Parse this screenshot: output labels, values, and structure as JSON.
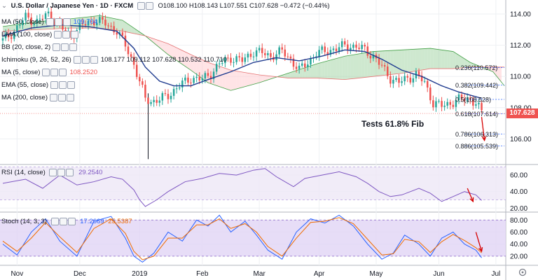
{
  "header": {
    "symbol": "U.S. Dollar / Japanese Yen · 1D · FXCM",
    "ohlc": "O108.100  H108.143  L107.551  C107.628  −0.472 (−0.44%)"
  },
  "legend_rows": [
    {
      "label": "MA (50, close)",
      "value": "109.704",
      "color": "#2962ff"
    },
    {
      "label": "EMA (100, close)",
      "value": "",
      "color": "#ff9800"
    },
    {
      "label": "BB (20, close, 2)",
      "value": "",
      "color": "#787b86"
    },
    {
      "label": "Ichimoku (9, 26, 52, 26)",
      "value": "108.177  109.112  107.628  110.532  110.710",
      "color": "#131722"
    },
    {
      "label": "MA (5, close)",
      "value": "108.2520",
      "color": "#ef5350"
    },
    {
      "label": "EMA (55, close)",
      "value": "",
      "color": "#131722"
    },
    {
      "label": "MA (200, close)",
      "value": "",
      "color": "#131722"
    }
  ],
  "rsi_legend": {
    "label": "RSI (14, close)",
    "value": "29.2540"
  },
  "stoch_legend": {
    "label": "Stoch (14, 3, 3)",
    "k": "17.2669",
    "d": "25.5387"
  },
  "annotation": "Tests 61.8% Fib",
  "price_tag": "107.628",
  "colors": {
    "up": "#26a69a",
    "down": "#ef5350",
    "ma": "#1f3b8f",
    "cloud_up": "#a5d6a7",
    "cloud_down": "#ffcdd2",
    "fib": "#2962ff",
    "rsi": "#7e57c2",
    "stoch_k": "#2962ff",
    "stoch_d": "#ef6c00",
    "arrow": "#d50000"
  },
  "chart_data": [
    {
      "type": "candlestick",
      "title": "U.S. Dollar / Japanese Yen, 1D, FXCM",
      "ylim": [
        104.4,
        114.9
      ],
      "y_ticks": [
        106.0,
        108.0,
        110.0,
        112.0,
        114.0
      ],
      "x_ticks": [
        {
          "label": "Nov",
          "i": 5
        },
        {
          "label": "Dec",
          "i": 27
        },
        {
          "label": "2019",
          "i": 48
        },
        {
          "label": "Feb",
          "i": 70
        },
        {
          "label": "Mar",
          "i": 90
        },
        {
          "label": "Apr",
          "i": 111
        },
        {
          "label": "May",
          "i": 131
        },
        {
          "label": "Jun",
          "i": 153
        },
        {
          "label": "Jul",
          "i": 173
        }
      ],
      "bars_count": 176,
      "close_path": [
        [
          0,
          112.3
        ],
        [
          4,
          112.9
        ],
        [
          8,
          113.8
        ],
        [
          12,
          113.5
        ],
        [
          16,
          114.0
        ],
        [
          20,
          113.2
        ],
        [
          24,
          112.6
        ],
        [
          28,
          113.3
        ],
        [
          32,
          113.6
        ],
        [
          36,
          113.4
        ],
        [
          40,
          112.9
        ],
        [
          43,
          112.0
        ],
        [
          46,
          110.8
        ],
        [
          48,
          109.6
        ],
        [
          50,
          108.6
        ],
        [
          52,
          108.4
        ],
        [
          55,
          108.5
        ],
        [
          58,
          108.8
        ],
        [
          62,
          109.4
        ],
        [
          66,
          109.9
        ],
        [
          70,
          109.8
        ],
        [
          73,
          110.2
        ],
        [
          76,
          110.8
        ],
        [
          80,
          111.2
        ],
        [
          84,
          111.0
        ],
        [
          88,
          111.6
        ],
        [
          91,
          111.5
        ],
        [
          94,
          111.3
        ],
        [
          98,
          111.6
        ],
        [
          101,
          111.1
        ],
        [
          104,
          110.4
        ],
        [
          107,
          110.9
        ],
        [
          110,
          111.5
        ],
        [
          113,
          111.6
        ],
        [
          117,
          111.8
        ],
        [
          121,
          112.0
        ],
        [
          124,
          111.9
        ],
        [
          127,
          111.7
        ],
        [
          130,
          111.3
        ],
        [
          133,
          110.6
        ],
        [
          136,
          109.9
        ],
        [
          139,
          109.6
        ],
        [
          142,
          109.9
        ],
        [
          145,
          110.1
        ],
        [
          148,
          109.6
        ],
        [
          151,
          108.3
        ],
        [
          154,
          108.1
        ],
        [
          157,
          108.3
        ],
        [
          160,
          108.5
        ],
        [
          163,
          108.6
        ],
        [
          166,
          108.3
        ],
        [
          168,
          107.63
        ]
      ],
      "flash_crash": {
        "i": 51,
        "low": 104.7
      },
      "ma": [
        [
          0,
          112.6
        ],
        [
          10,
          113.1
        ],
        [
          20,
          113.3
        ],
        [
          30,
          113.2
        ],
        [
          40,
          112.9
        ],
        [
          46,
          111.8
        ],
        [
          50,
          110.6
        ],
        [
          55,
          109.7
        ],
        [
          60,
          109.4
        ],
        [
          66,
          109.4
        ],
        [
          72,
          109.8
        ],
        [
          80,
          110.3
        ],
        [
          88,
          110.9
        ],
        [
          96,
          111.2
        ],
        [
          104,
          111.0
        ],
        [
          112,
          111.3
        ],
        [
          120,
          111.7
        ],
        [
          127,
          111.6
        ],
        [
          133,
          111.1
        ],
        [
          140,
          110.4
        ],
        [
          147,
          110.0
        ],
        [
          154,
          109.4
        ],
        [
          160,
          109.0
        ],
        [
          168,
          108.6
        ]
      ],
      "cloud": {
        "span_a": [
          [
            0,
            113.2
          ],
          [
            12,
            113.5
          ],
          [
            24,
            113.7
          ],
          [
            34,
            113.9
          ],
          [
            42,
            113.6
          ],
          [
            50,
            112.6
          ],
          [
            58,
            111.4
          ],
          [
            66,
            110.4
          ],
          [
            72,
            109.6
          ],
          [
            80,
            109.1
          ],
          [
            90,
            109.6
          ],
          [
            100,
            110.2
          ],
          [
            110,
            110.8
          ],
          [
            120,
            111.3
          ],
          [
            130,
            111.6
          ],
          [
            140,
            111.7
          ],
          [
            150,
            111.8
          ],
          [
            158,
            111.6
          ],
          [
            164,
            110.9
          ],
          [
            172,
            110.3
          ],
          [
            176,
            109.4
          ]
        ],
        "span_b": [
          [
            0,
            112.9
          ],
          [
            12,
            113.0
          ],
          [
            24,
            113.1
          ],
          [
            34,
            113.1
          ],
          [
            42,
            112.9
          ],
          [
            50,
            112.6
          ],
          [
            58,
            112.1
          ],
          [
            66,
            111.4
          ],
          [
            72,
            110.9
          ],
          [
            80,
            110.4
          ],
          [
            90,
            110.1
          ],
          [
            100,
            109.9
          ],
          [
            110,
            109.9
          ],
          [
            120,
            109.8
          ],
          [
            130,
            110.0
          ],
          [
            140,
            110.2
          ],
          [
            150,
            110.5
          ],
          [
            158,
            110.5
          ],
          [
            164,
            110.6
          ],
          [
            172,
            110.6
          ],
          [
            176,
            110.6
          ]
        ]
      },
      "fib_levels": [
        {
          "label": "0.236(110.572)",
          "value": 110.572
        },
        {
          "label": "0.382(109.442)",
          "value": 109.442
        },
        {
          "label": "0.5(108.528)",
          "value": 108.528
        },
        {
          "label": "0.618(107.614)",
          "value": 107.614
        },
        {
          "label": "0.786(106.313)",
          "value": 106.313
        },
        {
          "label": "0.886(105.539)",
          "value": 105.539
        }
      ],
      "fib_range": [
        162,
        176
      ],
      "arrow": {
        "from": [
          168,
          107.4
        ],
        "to": [
          169,
          105.9
        ]
      },
      "last_price": 107.628
    },
    {
      "type": "line",
      "title": "RSI (14, close)",
      "ylim": [
        16,
        72
      ],
      "y_ticks": [
        20.0,
        40.0,
        60.0
      ],
      "band": [
        30,
        70
      ],
      "x": [
        0,
        8,
        14,
        20,
        26,
        32,
        38,
        42,
        46,
        48,
        50,
        54,
        58,
        64,
        70,
        76,
        82,
        88,
        92,
        96,
        102,
        106,
        112,
        118,
        124,
        128,
        132,
        136,
        140,
        146,
        150,
        154,
        158,
        162,
        166,
        168
      ],
      "values": [
        50,
        55,
        44,
        60,
        48,
        52,
        58,
        55,
        42,
        30,
        22,
        30,
        40,
        52,
        56,
        62,
        60,
        66,
        68,
        58,
        46,
        56,
        60,
        64,
        58,
        50,
        40,
        34,
        36,
        44,
        38,
        28,
        34,
        40,
        36,
        29.25
      ],
      "arrow": {
        "from": [
          163,
          44
        ],
        "to": [
          165,
          28
        ]
      }
    },
    {
      "type": "line",
      "title": "Stoch (14, 3, 3)",
      "ylim": [
        6,
        92
      ],
      "y_ticks": [
        20.0,
        40.0,
        60.0,
        80.0
      ],
      "band": [
        20,
        80
      ],
      "x": [
        0,
        5,
        10,
        15,
        20,
        26,
        32,
        38,
        43,
        46,
        49,
        53,
        58,
        63,
        68,
        72,
        76,
        80,
        85,
        89,
        93,
        98,
        103,
        108,
        113,
        118,
        123,
        128,
        133,
        137,
        141,
        146,
        150,
        154,
        158,
        162,
        166,
        168
      ],
      "k": [
        40,
        22,
        60,
        82,
        45,
        20,
        78,
        86,
        50,
        20,
        10,
        25,
        60,
        45,
        80,
        70,
        88,
        60,
        78,
        55,
        30,
        15,
        60,
        82,
        75,
        88,
        70,
        40,
        15,
        25,
        55,
        40,
        20,
        50,
        60,
        40,
        30,
        17.27
      ],
      "d": [
        45,
        28,
        50,
        76,
        52,
        26,
        66,
        82,
        58,
        28,
        14,
        20,
        50,
        50,
        72,
        72,
        82,
        66,
        74,
        60,
        36,
        20,
        50,
        76,
        78,
        84,
        74,
        48,
        22,
        24,
        48,
        44,
        26,
        44,
        56,
        46,
        34,
        25.54
      ],
      "arrow": {
        "from": [
          166,
          60
        ],
        "to": [
          168,
          28
        ]
      }
    }
  ]
}
